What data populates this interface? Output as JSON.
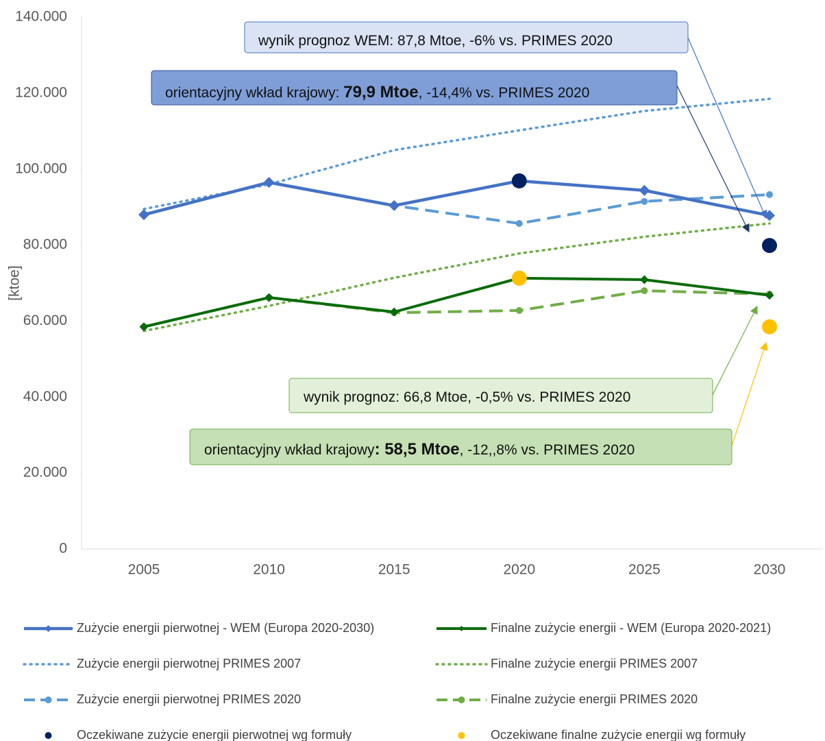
{
  "chart_data": {
    "type": "line",
    "y_label": "[ktoe]",
    "categories": [
      "2005",
      "2010",
      "2015",
      "2020",
      "2025",
      "2030"
    ],
    "ylim": [
      0,
      140000
    ],
    "yticks": [
      0,
      {
        "value": 20000,
        "label": "20.000"
      },
      {
        "value": 40000,
        "label": "40.000"
      },
      {
        "value": 60000,
        "label": "60.000"
      },
      {
        "value": 80000,
        "label": "80.000"
      },
      {
        "value": 100000,
        "label": "100.000"
      },
      {
        "value": 120000,
        "label": "120.000"
      },
      {
        "value": 140000,
        "label": "140.000"
      }
    ],
    "series": [
      {
        "name": "Zużycie energii pierwotnej - WEM (Europa 2020-2030)",
        "color": "#4472c4",
        "style": "solid",
        "marker": "diamond",
        "values": [
          88000,
          96500,
          90400,
          96900,
          94400,
          87800
        ]
      },
      {
        "name": "Finalne zużycie energii - WEM (Europa 2020-2021)",
        "color": "#0b6b0b",
        "style": "solid",
        "marker": "diamond-small",
        "values": [
          58500,
          66200,
          62400,
          71300,
          70900,
          66800
        ]
      },
      {
        "name": "Zużycie energii pierwotnej PRIMES 2007",
        "color": "#5b9bd5",
        "style": "dotted",
        "marker": "none",
        "values": [
          89500,
          96000,
          105000,
          110200,
          115300,
          118500
        ]
      },
      {
        "name": "Finalne zużycie energii PRIMES 2007",
        "color": "#70ad47",
        "style": "dotted",
        "marker": "none",
        "values": [
          57400,
          64000,
          71400,
          77800,
          82200,
          85700
        ]
      },
      {
        "name": "Zużycie energii pierwotnej PRIMES 2020",
        "color": "#5b9bd5",
        "style": "dashed",
        "marker": "circle",
        "values": [
          88000,
          96500,
          90400,
          85700,
          91500,
          93300
        ]
      },
      {
        "name": "Finalne zużycie energii PRIMES 2020",
        "color": "#70ad47",
        "style": "dashed",
        "marker": "circle",
        "values": [
          58500,
          66200,
          62200,
          62800,
          68000,
          67100
        ]
      },
      {
        "name": "Oczekiwane zużycie energii pierwotnej wg formuły",
        "color": "#002060",
        "style": "none",
        "marker": "dot",
        "values": [
          null,
          null,
          null,
          96900,
          null,
          79900
        ]
      },
      {
        "name": "Oczekiwane finalne zużycie energii wg formuły",
        "color": "#ffc000",
        "style": "none",
        "marker": "dot",
        "values": [
          null,
          null,
          null,
          71300,
          null,
          58500
        ]
      }
    ],
    "annotations": [
      {
        "parts": [
          "wynik prognoz WEM: 87,8 Mtoe, -6% vs. PRIMES 2020"
        ]
      },
      {
        "parts": [
          "orientacyjny wkład krajowy: ",
          "79,9 Mtoe",
          ", -14,4% vs. PRIMES 2020"
        ]
      },
      {
        "parts": [
          "wynik prognoz: 66,8 Mtoe, -0,5% vs. PRIMES 2020"
        ]
      },
      {
        "parts": [
          "orientacyjny wkład krajowy",
          ": 58,5 Mtoe",
          ", -12,,8% vs. PRIMES 2020"
        ]
      }
    ]
  }
}
